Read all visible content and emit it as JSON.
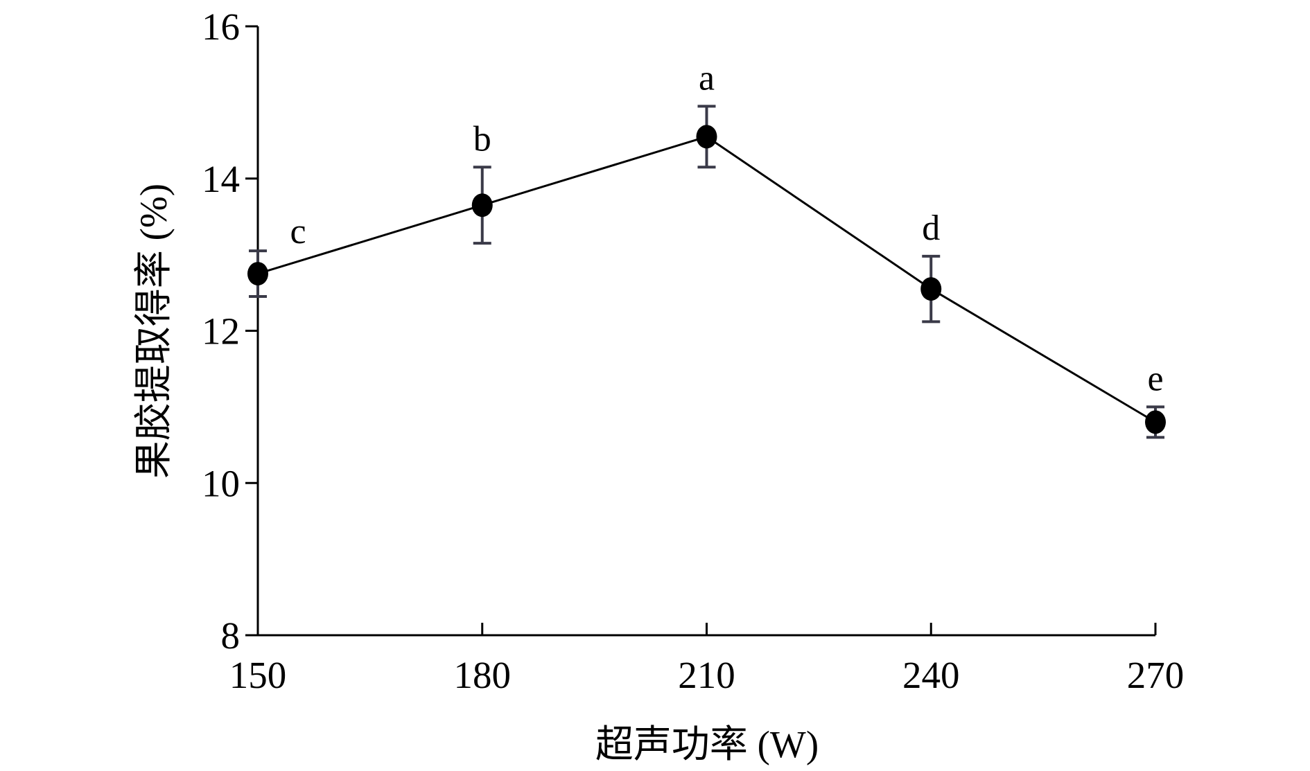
{
  "chart_data": {
    "type": "line",
    "x": [
      150,
      180,
      210,
      240,
      270
    ],
    "y": [
      12.75,
      13.65,
      14.55,
      12.55,
      10.8
    ],
    "error": [
      0.3,
      0.5,
      0.4,
      0.43,
      0.2
    ],
    "significance_labels": [
      "c",
      "b",
      "a",
      "d",
      "e"
    ],
    "xlabel": "超声功率 (W)",
    "ylabel": "果胶提取得率 (%)",
    "xlim": [
      150,
      270
    ],
    "ylim": [
      8,
      16
    ],
    "xticks": [
      "150",
      "180",
      "210",
      "240",
      "270"
    ],
    "yticks": [
      "8",
      "10",
      "12",
      "14",
      "16"
    ],
    "grid": false,
    "legend": "none",
    "colors": {
      "line": "#000000",
      "marker": "#000000",
      "error_bar": "#3a3a48"
    }
  }
}
